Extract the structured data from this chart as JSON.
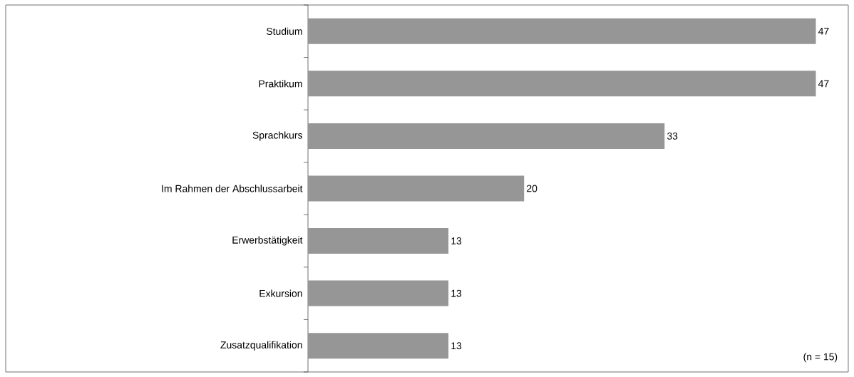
{
  "chart_data": {
    "type": "bar",
    "orientation": "horizontal",
    "categories": [
      "Studium",
      "Praktikum",
      "Sprachkurs",
      "Im Rahmen der Abschlussarbeit",
      "Erwerbstätigkeit",
      "Exkursion",
      "Zusatzqualifikation"
    ],
    "values": [
      47,
      47,
      33,
      20,
      13,
      13,
      13
    ],
    "color": "#969696",
    "data_labels": true,
    "xlim": [
      0,
      50
    ],
    "tick_labels": "y",
    "annotations": [
      "(n = 15)"
    ]
  }
}
